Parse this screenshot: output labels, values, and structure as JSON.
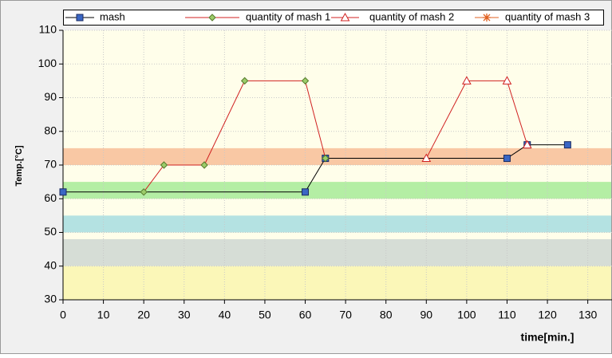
{
  "chart_data": {
    "type": "line",
    "x_label": "time[min.]",
    "y_label": "Temp.[°C]",
    "xlim": [
      0,
      136
    ],
    "ylim": [
      30,
      110
    ],
    "xticks": [
      0,
      10,
      20,
      30,
      40,
      50,
      60,
      70,
      80,
      90,
      100,
      110,
      120,
      130
    ],
    "yticks": [
      30,
      40,
      50,
      60,
      70,
      80,
      90,
      100,
      110
    ],
    "grid": true,
    "bands": [
      {
        "from": 70,
        "to": 75,
        "color": "#f9c8a4"
      },
      {
        "from": 60,
        "to": 65,
        "color": "#b4eea4"
      },
      {
        "from": 50,
        "to": 55,
        "color": "#b4e2e2"
      },
      {
        "from": 40,
        "to": 48,
        "color": "#d6ddd6"
      },
      {
        "from": 30,
        "to": 40,
        "color": "#fbf7b8"
      }
    ],
    "series": [
      {
        "name": "mash",
        "color": "#000000",
        "marker": "square",
        "marker_color": "#3a66c4",
        "x": [
          0,
          60,
          65,
          110,
          115,
          125
        ],
        "values": [
          62,
          62,
          72,
          72,
          76,
          76
        ]
      },
      {
        "name": "quantity of mash 1",
        "color": "#d02020",
        "marker": "diamond",
        "marker_color": "#9ccc6a",
        "x": [
          20,
          25,
          35,
          45,
          60,
          65
        ],
        "values": [
          62,
          70,
          70,
          95,
          95,
          72
        ]
      },
      {
        "name": "quantity of mash 2",
        "color": "#d02020",
        "marker": "triangle",
        "marker_color": "#ffffff",
        "x": [
          90,
          100,
          110,
          115
        ],
        "values": [
          72,
          95,
          95,
          76
        ]
      },
      {
        "name": "quantity of mash 3",
        "color": "#e06020",
        "marker": "star",
        "marker_color": "#e06020",
        "x": [],
        "values": []
      }
    ]
  }
}
